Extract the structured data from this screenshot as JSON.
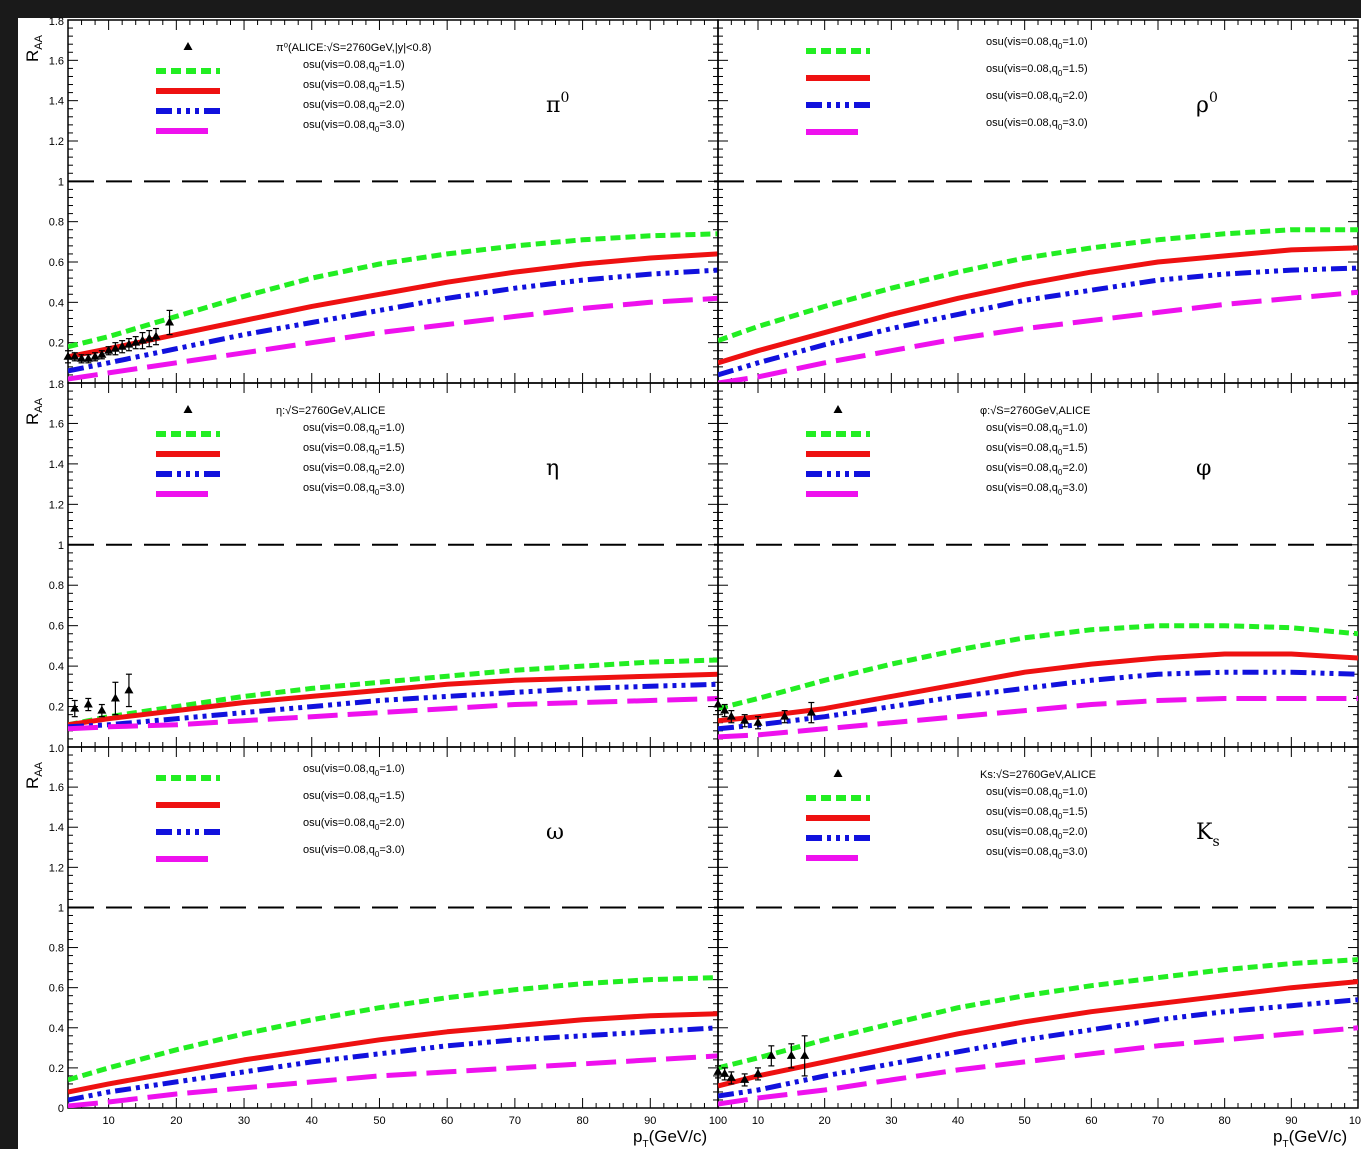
{
  "figure": {
    "y_axis_label": "R",
    "y_axis_sub": "AA",
    "x_axis_label": "p",
    "x_axis_sub": "T",
    "x_axis_unit": "(GeV/c)",
    "x_ticks": [
      10,
      20,
      30,
      40,
      50,
      60,
      70,
      80,
      90,
      100
    ],
    "x_tick_labels": [
      "10",
      "20",
      "30",
      "40",
      "50",
      "60",
      "70",
      "80",
      "90",
      "100"
    ],
    "y_ticks": [
      0.2,
      0.4,
      0.6,
      0.8,
      1,
      1.2,
      1.4,
      1.6
    ],
    "y_tick_labels": [
      "0.2",
      "0.4",
      "0.6",
      "0.8",
      "1",
      "1.2",
      "1.4",
      "1.6"
    ],
    "bottom_y_zero_label": "0",
    "edge_labels": [
      "1.8",
      "1.0"
    ],
    "legend_text": [
      "osu(vis=0.08,q",
      "=1.0)",
      "=1.5)",
      "=2.0)",
      "=3.0)"
    ],
    "legend_sub": "0",
    "colors": {
      "q1.0": "#22ee22",
      "q1.5": "#ee1111",
      "q2.0": "#1111dd",
      "q3.0": "#ee11ee",
      "data": "#000000",
      "reference": "#000000"
    }
  },
  "chart_data": [
    {
      "type": "line",
      "panel": "pi0",
      "particle_label": "π",
      "particle_sup": "0",
      "particle_sub": "",
      "data_legend": "π⁰(ALICE:√S=2760GeV,|y|<0.8)",
      "xlim": [
        4,
        100
      ],
      "ylim": [
        0,
        1.8
      ],
      "reference_line": 1,
      "x": [
        4,
        10,
        20,
        30,
        40,
        50,
        60,
        70,
        80,
        90,
        100
      ],
      "series": [
        {
          "name": "osu(vis=0.08,q0=1.0)",
          "values": [
            0.18,
            0.23,
            0.33,
            0.43,
            0.52,
            0.59,
            0.64,
            0.68,
            0.71,
            0.73,
            0.74
          ]
        },
        {
          "name": "osu(vis=0.08,q0=1.5)",
          "values": [
            0.13,
            0.17,
            0.24,
            0.31,
            0.38,
            0.44,
            0.5,
            0.55,
            0.59,
            0.62,
            0.64
          ]
        },
        {
          "name": "osu(vis=0.08,q0=2.0)",
          "values": [
            0.06,
            0.1,
            0.17,
            0.24,
            0.3,
            0.36,
            0.42,
            0.47,
            0.51,
            0.54,
            0.56
          ]
        },
        {
          "name": "osu(vis=0.08,q0=3.0)",
          "values": [
            0.02,
            0.05,
            0.1,
            0.15,
            0.2,
            0.25,
            0.29,
            0.33,
            0.37,
            0.4,
            0.42
          ]
        }
      ],
      "data_points": {
        "x": [
          4,
          5,
          6,
          7,
          8,
          9,
          10,
          11,
          12,
          13,
          14,
          15,
          16,
          17,
          19
        ],
        "y": [
          0.13,
          0.13,
          0.12,
          0.12,
          0.13,
          0.14,
          0.16,
          0.17,
          0.18,
          0.19,
          0.2,
          0.21,
          0.22,
          0.23,
          0.3
        ],
        "err": [
          0.03,
          0.02,
          0.02,
          0.02,
          0.02,
          0.02,
          0.02,
          0.03,
          0.03,
          0.03,
          0.03,
          0.04,
          0.04,
          0.04,
          0.06
        ]
      }
    },
    {
      "type": "line",
      "panel": "rho0",
      "particle_label": "ρ",
      "particle_sup": "0",
      "particle_sub": "",
      "data_legend": "",
      "xlim": [
        4,
        100
      ],
      "ylim": [
        0,
        1.8
      ],
      "reference_line": 1,
      "x": [
        4,
        10,
        20,
        30,
        40,
        50,
        60,
        70,
        80,
        90,
        100
      ],
      "series": [
        {
          "name": "osu(vis=0.08,q0=1.0)",
          "values": [
            0.21,
            0.28,
            0.38,
            0.47,
            0.55,
            0.62,
            0.67,
            0.71,
            0.74,
            0.76,
            0.76
          ]
        },
        {
          "name": "osu(vis=0.08,q0=1.5)",
          "values": [
            0.1,
            0.16,
            0.25,
            0.34,
            0.42,
            0.49,
            0.55,
            0.6,
            0.63,
            0.66,
            0.67
          ]
        },
        {
          "name": "osu(vis=0.08,q0=2.0)",
          "values": [
            0.04,
            0.1,
            0.19,
            0.27,
            0.34,
            0.41,
            0.46,
            0.51,
            0.54,
            0.56,
            0.57
          ]
        },
        {
          "name": "osu(vis=0.08,q0=3.0)",
          "values": [
            0.0,
            0.03,
            0.1,
            0.16,
            0.22,
            0.27,
            0.31,
            0.35,
            0.39,
            0.42,
            0.45
          ]
        }
      ]
    },
    {
      "type": "line",
      "panel": "eta",
      "particle_label": "η",
      "particle_sup": "",
      "particle_sub": "",
      "data_legend": "η:√S=2760GeV,ALICE",
      "xlim": [
        4,
        100
      ],
      "ylim": [
        0,
        1.8
      ],
      "reference_line": 1,
      "x": [
        4,
        10,
        20,
        30,
        40,
        50,
        60,
        70,
        80,
        90,
        100
      ],
      "series": [
        {
          "name": "osu(vis=0.08,q0=1.0)",
          "values": [
            0.11,
            0.15,
            0.2,
            0.25,
            0.29,
            0.32,
            0.35,
            0.38,
            0.4,
            0.42,
            0.43
          ]
        },
        {
          "name": "osu(vis=0.08,q0=1.5)",
          "values": [
            0.11,
            0.14,
            0.18,
            0.22,
            0.25,
            0.28,
            0.31,
            0.33,
            0.34,
            0.35,
            0.36
          ]
        },
        {
          "name": "osu(vis=0.08,q0=2.0)",
          "values": [
            0.1,
            0.11,
            0.14,
            0.17,
            0.2,
            0.23,
            0.25,
            0.27,
            0.29,
            0.3,
            0.31
          ]
        },
        {
          "name": "osu(vis=0.08,q0=3.0)",
          "values": [
            0.09,
            0.1,
            0.11,
            0.13,
            0.15,
            0.17,
            0.19,
            0.21,
            0.22,
            0.23,
            0.24
          ]
        }
      ],
      "data_points": {
        "x": [
          5,
          7,
          9,
          11,
          13
        ],
        "y": [
          0.19,
          0.21,
          0.18,
          0.24,
          0.28
        ],
        "err": [
          0.04,
          0.03,
          0.03,
          0.08,
          0.08
        ]
      }
    },
    {
      "type": "line",
      "panel": "phi",
      "particle_label": "φ",
      "particle_sup": "",
      "particle_sub": "",
      "data_legend": "φ:√S=2760GeV,ALICE",
      "xlim": [
        4,
        100
      ],
      "ylim": [
        0,
        1.8
      ],
      "reference_line": 1,
      "x": [
        4,
        10,
        20,
        30,
        40,
        50,
        60,
        70,
        80,
        90,
        100
      ],
      "series": [
        {
          "name": "osu(vis=0.08,q0=1.0)",
          "values": [
            0.19,
            0.24,
            0.33,
            0.41,
            0.48,
            0.54,
            0.58,
            0.6,
            0.6,
            0.59,
            0.56
          ]
        },
        {
          "name": "osu(vis=0.08,q0=1.5)",
          "values": [
            0.13,
            0.15,
            0.19,
            0.25,
            0.31,
            0.37,
            0.41,
            0.44,
            0.46,
            0.46,
            0.44
          ]
        },
        {
          "name": "osu(vis=0.08,q0=2.0)",
          "values": [
            0.09,
            0.11,
            0.15,
            0.2,
            0.25,
            0.29,
            0.33,
            0.36,
            0.37,
            0.37,
            0.36
          ]
        },
        {
          "name": "osu(vis=0.08,q0=3.0)",
          "values": [
            0.05,
            0.06,
            0.09,
            0.12,
            0.15,
            0.18,
            0.21,
            0.23,
            0.24,
            0.24,
            0.24
          ]
        }
      ],
      "data_points": {
        "x": [
          4,
          5,
          6,
          8,
          10,
          14,
          18
        ],
        "y": [
          0.21,
          0.18,
          0.15,
          0.13,
          0.12,
          0.15,
          0.17
        ],
        "err": [
          0.03,
          0.03,
          0.03,
          0.03,
          0.03,
          0.03,
          0.05
        ]
      }
    },
    {
      "type": "line",
      "panel": "omega",
      "particle_label": "ω",
      "particle_sup": "",
      "particle_sub": "",
      "data_legend": "",
      "xlim": [
        4,
        100
      ],
      "ylim": [
        0,
        1.8
      ],
      "reference_line": 1,
      "x": [
        4,
        10,
        20,
        30,
        40,
        50,
        60,
        70,
        80,
        90,
        100
      ],
      "series": [
        {
          "name": "osu(vis=0.08,q0=1.0)",
          "values": [
            0.14,
            0.2,
            0.29,
            0.37,
            0.44,
            0.5,
            0.55,
            0.59,
            0.62,
            0.64,
            0.65
          ]
        },
        {
          "name": "osu(vis=0.08,q0=1.5)",
          "values": [
            0.08,
            0.12,
            0.18,
            0.24,
            0.29,
            0.34,
            0.38,
            0.41,
            0.44,
            0.46,
            0.47
          ]
        },
        {
          "name": "osu(vis=0.08,q0=2.0)",
          "values": [
            0.04,
            0.08,
            0.13,
            0.18,
            0.23,
            0.27,
            0.31,
            0.34,
            0.36,
            0.38,
            0.4
          ]
        },
        {
          "name": "osu(vis=0.08,q0=3.0)",
          "values": [
            0.01,
            0.03,
            0.07,
            0.1,
            0.13,
            0.16,
            0.18,
            0.2,
            0.22,
            0.24,
            0.26
          ]
        }
      ]
    },
    {
      "type": "line",
      "panel": "Ks",
      "particle_label": "K",
      "particle_sup": "",
      "particle_sub": "s",
      "data_legend": "Ks:√S=2760GeV,ALICE",
      "xlim": [
        4,
        100
      ],
      "ylim": [
        0,
        1.8
      ],
      "reference_line": 1,
      "x": [
        4,
        10,
        20,
        30,
        40,
        50,
        60,
        70,
        80,
        90,
        100
      ],
      "series": [
        {
          "name": "osu(vis=0.08,q0=1.0)",
          "values": [
            0.2,
            0.25,
            0.34,
            0.42,
            0.5,
            0.56,
            0.61,
            0.65,
            0.69,
            0.72,
            0.74
          ]
        },
        {
          "name": "osu(vis=0.08,q0=1.5)",
          "values": [
            0.11,
            0.16,
            0.23,
            0.3,
            0.37,
            0.43,
            0.48,
            0.52,
            0.56,
            0.6,
            0.63
          ]
        },
        {
          "name": "osu(vis=0.08,q0=2.0)",
          "values": [
            0.06,
            0.09,
            0.16,
            0.22,
            0.28,
            0.34,
            0.39,
            0.44,
            0.48,
            0.51,
            0.54
          ]
        },
        {
          "name": "osu(vis=0.08,q0=3.0)",
          "values": [
            0.02,
            0.05,
            0.09,
            0.14,
            0.19,
            0.23,
            0.27,
            0.31,
            0.34,
            0.37,
            0.4
          ]
        }
      ],
      "data_points": {
        "x": [
          4,
          5,
          6,
          8,
          10,
          12,
          15,
          17
        ],
        "y": [
          0.18,
          0.17,
          0.15,
          0.14,
          0.17,
          0.26,
          0.26,
          0.26
        ],
        "err": [
          0.03,
          0.03,
          0.03,
          0.03,
          0.03,
          0.05,
          0.06,
          0.1
        ]
      }
    }
  ]
}
